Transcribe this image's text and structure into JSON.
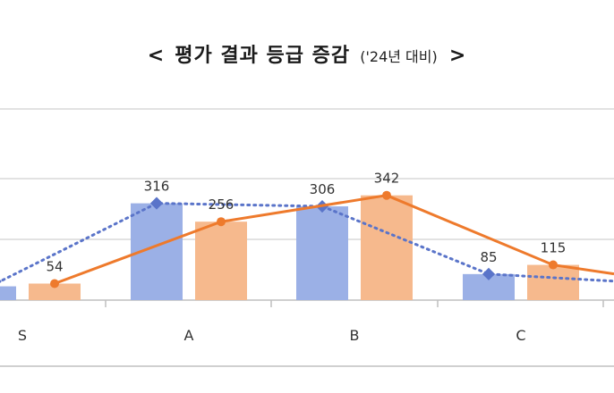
{
  "title": {
    "open": "<",
    "main": "평가 결과 등급 증감",
    "sub": "('24년 대비)",
    "close": ">"
  },
  "chart_data": {
    "type": "bar",
    "categories": [
      "S",
      "A",
      "B",
      "C"
    ],
    "series": [
      {
        "values": [
          45,
          316,
          306,
          85
        ],
        "color": "#9bb0e6",
        "line_color": "#5a74c9",
        "line_style": "dotted"
      },
      {
        "values": [
          54,
          256,
          342,
          115
        ],
        "color": "#f6b98d",
        "line_color": "#ee7a2c",
        "line_style": "solid"
      }
    ],
    "data_labels": [
      [
        "",
        "316",
        "306",
        "85"
      ],
      [
        "54",
        "256",
        "342",
        "115"
      ]
    ],
    "grid": true,
    "legend": "none"
  }
}
